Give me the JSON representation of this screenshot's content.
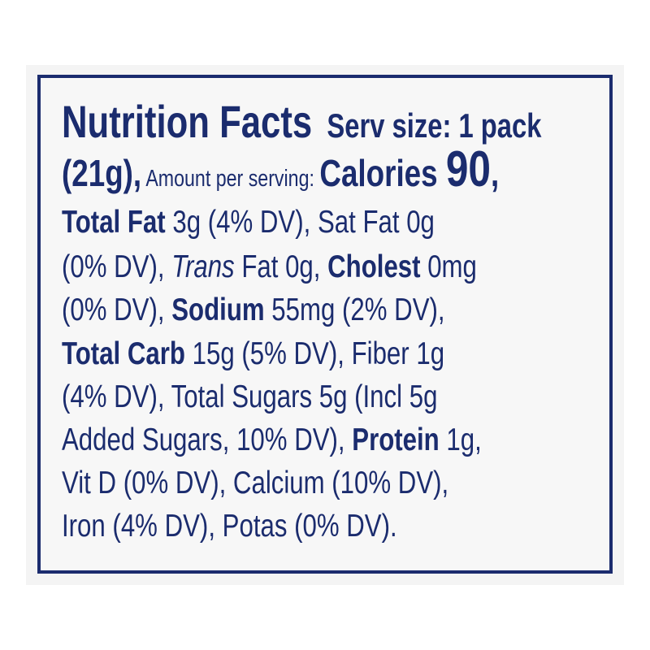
{
  "label": {
    "text_color": "#1b2c6e",
    "lines": [
      [
        {
          "t": "Nutrition Facts",
          "s": "title"
        },
        {
          "t": "  Serv size: 1 pack",
          "s": "serv"
        }
      ],
      [
        {
          "t": "(21g),",
          "s": "paren"
        },
        {
          "t": " Amount per serving: ",
          "s": "small"
        },
        {
          "t": "Calories ",
          "s": "cal"
        },
        {
          "t": "90",
          "s": "big"
        },
        {
          "t": ",",
          "s": "cal"
        }
      ],
      [
        {
          "t": "Total Fat",
          "s": "b"
        },
        {
          "t": " 3g (4% DV), Sat Fat 0g",
          "s": ""
        }
      ],
      [
        {
          "t": "(0% DV), ",
          "s": ""
        },
        {
          "t": "Trans",
          "s": "i"
        },
        {
          "t": " Fat 0g, ",
          "s": ""
        },
        {
          "t": "Cholest",
          "s": "b"
        },
        {
          "t": " 0mg",
          "s": ""
        }
      ],
      [
        {
          "t": "(0% DV), ",
          "s": ""
        },
        {
          "t": "Sodium",
          "s": "b"
        },
        {
          "t": " 55mg (2% DV),",
          "s": ""
        }
      ],
      [
        {
          "t": "Total Carb",
          "s": "b"
        },
        {
          "t": " 15g (5% DV), Fiber 1g",
          "s": ""
        }
      ],
      [
        {
          "t": "(4% DV), Total Sugars 5g (Incl 5g",
          "s": ""
        }
      ],
      [
        {
          "t": "Added Sugars, 10% DV), ",
          "s": ""
        },
        {
          "t": "Protein",
          "s": "b"
        },
        {
          "t": " 1g,",
          "s": ""
        }
      ],
      [
        {
          "t": "Vit D (0% DV), Calcium (10% DV),",
          "s": ""
        }
      ],
      [
        {
          "t": "Iron (4% DV), Potas (0% DV).",
          "s": ""
        }
      ]
    ]
  }
}
